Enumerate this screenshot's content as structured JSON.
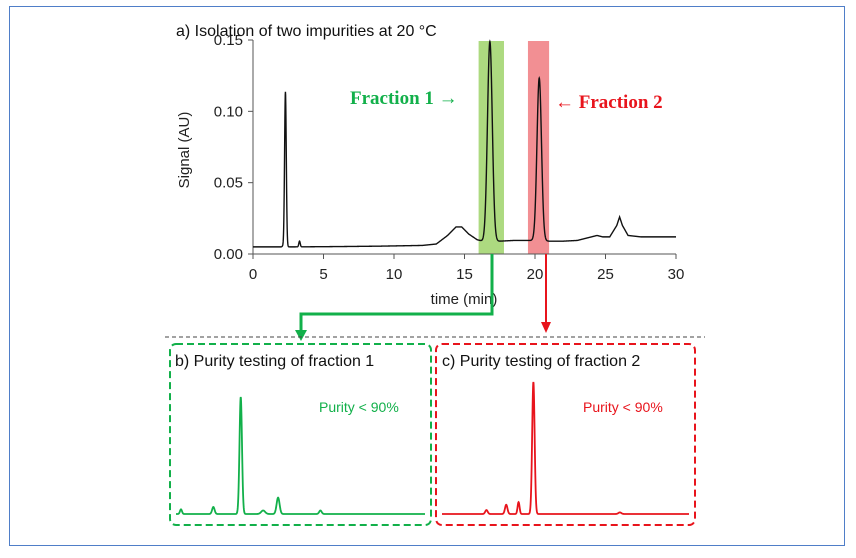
{
  "colors": {
    "green": "#12b04a",
    "red": "#e8141c",
    "frame": "#4f7ec8",
    "line": "#111111"
  },
  "chart_data": [
    {
      "type": "line",
      "title": "a) Isolation of two impurities at 20 °C",
      "xlabel": "time (min)",
      "ylabel": "Signal (AU)",
      "xlim": [
        0,
        30
      ],
      "ylim": [
        0,
        0.15
      ],
      "x_ticks": [
        "0",
        "5",
        "10",
        "15",
        "20",
        "25",
        "30"
      ],
      "y_ticks": [
        "0.00",
        "0.05",
        "0.10",
        "0.15"
      ],
      "grid": false,
      "baseline": [
        [
          0,
          0.005
        ],
        [
          2,
          0.005
        ],
        [
          2.2,
          0.006
        ],
        [
          2.5,
          0.005
        ],
        [
          3,
          0.005
        ],
        [
          6,
          0.0052
        ],
        [
          9,
          0.0055
        ],
        [
          12,
          0.006
        ],
        [
          13,
          0.007
        ],
        [
          13.8,
          0.013
        ],
        [
          14.4,
          0.019
        ],
        [
          14.8,
          0.019
        ],
        [
          15.3,
          0.014
        ],
        [
          15.9,
          0.01
        ],
        [
          16.3,
          0.009
        ],
        [
          17.5,
          0.009
        ],
        [
          18.5,
          0.0095
        ],
        [
          20,
          0.0095
        ],
        [
          21,
          0.009
        ],
        [
          22,
          0.009
        ],
        [
          23,
          0.0095
        ],
        [
          24,
          0.012
        ],
        [
          24.4,
          0.013
        ],
        [
          24.8,
          0.012
        ],
        [
          25.3,
          0.012
        ],
        [
          25.8,
          0.02
        ],
        [
          26,
          0.026
        ],
        [
          26.2,
          0.02
        ],
        [
          26.6,
          0.013
        ],
        [
          27.5,
          0.012
        ],
        [
          30,
          0.012
        ]
      ],
      "peaks": [
        {
          "center": 2.3,
          "height": 0.108,
          "width": 0.06
        },
        {
          "center": 3.3,
          "height": 0.004,
          "width": 0.05
        },
        {
          "center": 16.8,
          "height": 0.14,
          "width": 0.17
        },
        {
          "center": 20.3,
          "height": 0.114,
          "width": 0.16
        }
      ],
      "fractions": [
        {
          "label": "Fraction 1 →",
          "start": 16.0,
          "end": 17.8,
          "color": "#9fd36a"
        },
        {
          "label": "← Fraction 2",
          "start": 19.5,
          "end": 21.0,
          "color": "#f07b80"
        }
      ]
    },
    {
      "type": "line",
      "title": "b) Purity testing of fraction 1",
      "annotation": "Purity < 90%",
      "color": "#12b04a",
      "peaks": [
        {
          "center": 0.02,
          "height": 0.04,
          "width": 0.004
        },
        {
          "center": 0.15,
          "height": 0.06,
          "width": 0.005
        },
        {
          "center": 0.26,
          "height": 1.0,
          "width": 0.005
        },
        {
          "center": 0.35,
          "height": 0.03,
          "width": 0.008
        },
        {
          "center": 0.41,
          "height": 0.14,
          "width": 0.006
        },
        {
          "center": 0.58,
          "height": 0.03,
          "width": 0.005
        }
      ]
    },
    {
      "type": "line",
      "title": "c) Purity testing of fraction 2",
      "annotation": "Purity < 90%",
      "color": "#e8141c",
      "peaks": [
        {
          "center": 0.18,
          "height": 0.03,
          "width": 0.005
        },
        {
          "center": 0.26,
          "height": 0.07,
          "width": 0.005
        },
        {
          "center": 0.31,
          "height": 0.09,
          "width": 0.004
        },
        {
          "center": 0.37,
          "height": 1.0,
          "width": 0.005
        },
        {
          "center": 0.72,
          "height": 0.012,
          "width": 0.006
        }
      ]
    }
  ]
}
